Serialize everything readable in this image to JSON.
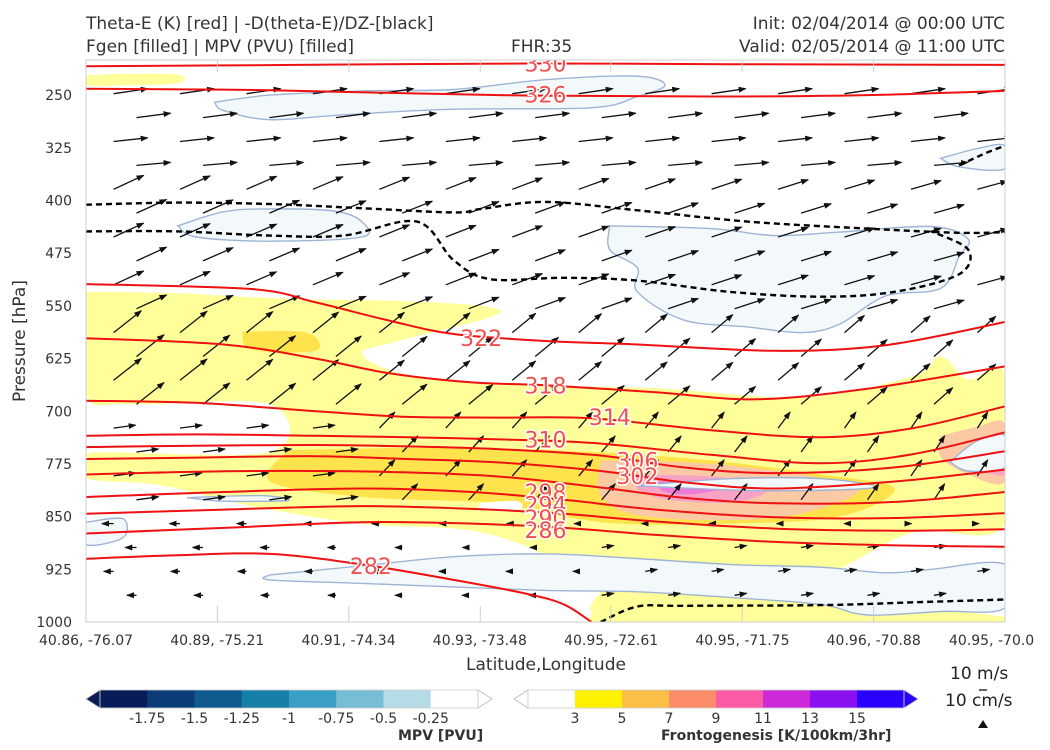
{
  "header": {
    "line1_left": "Theta-E (K) [red] | -D(theta-E)/DZ-[black]",
    "line2_left": "Fgen [filled] | MPV (PVU) [filled]",
    "fhr": "FHR:35",
    "init": "Init: 02/04/2014 @ 00:00 UTC",
    "valid": "Valid: 02/05/2014 @ 11:00 UTC"
  },
  "chart_data": {
    "type": "cross-section",
    "ylabel": "Pressure [hPa]",
    "xlabel": "Latitude,Longitude",
    "y_ticks": [
      250,
      325,
      400,
      475,
      550,
      625,
      700,
      775,
      850,
      925,
      1000
    ],
    "ylim": [
      1000,
      200
    ],
    "x_ticks": [
      "40.86, -76.07",
      "40.89, -75.21",
      "40.91, -74.34",
      "40.93, -73.48",
      "40.95, -72.61",
      "40.95, -71.75",
      "40.96, -70.88",
      "40.95, -70.0"
    ],
    "theta_e_contours": [
      {
        "label": "330",
        "points": [
          [
            0,
            209
          ],
          [
            0.23,
            207
          ],
          [
            0.48,
            205
          ],
          [
            0.7,
            206
          ],
          [
            1,
            207
          ]
        ]
      },
      {
        "label": "326",
        "points": [
          [
            0,
            241
          ],
          [
            0.2,
            243
          ],
          [
            0.45,
            250
          ],
          [
            0.68,
            252
          ],
          [
            0.85,
            250
          ],
          [
            1,
            244
          ]
        ]
      },
      {
        "label": "322",
        "points": [
          [
            0,
            519
          ],
          [
            0.18,
            526
          ],
          [
            0.25,
            545
          ],
          [
            0.33,
            571
          ],
          [
            0.4,
            590
          ],
          [
            0.5,
            600
          ],
          [
            0.6,
            605
          ],
          [
            0.75,
            614
          ],
          [
            0.87,
            606
          ],
          [
            1,
            573
          ]
        ]
      },
      {
        "label": "318",
        "points": [
          [
            0,
            596
          ],
          [
            0.15,
            605
          ],
          [
            0.25,
            625
          ],
          [
            0.33,
            646
          ],
          [
            0.42,
            659
          ],
          [
            0.5,
            663
          ],
          [
            0.62,
            673
          ],
          [
            0.73,
            683
          ],
          [
            0.85,
            668
          ],
          [
            1,
            636
          ]
        ]
      },
      {
        "label": "314",
        "points": [
          [
            0,
            685
          ],
          [
            0.12,
            688
          ],
          [
            0.25,
            700
          ],
          [
            0.35,
            708
          ],
          [
            0.45,
            709
          ],
          [
            0.55,
            710
          ],
          [
            0.68,
            727
          ],
          [
            0.8,
            737
          ],
          [
            0.9,
            724
          ],
          [
            1,
            693
          ]
        ]
      },
      {
        "label": "310",
        "points": [
          [
            0,
            735
          ],
          [
            0.12,
            733
          ],
          [
            0.25,
            735
          ],
          [
            0.35,
            737
          ],
          [
            0.45,
            740
          ],
          [
            0.55,
            745
          ],
          [
            0.68,
            762
          ],
          [
            0.8,
            774
          ],
          [
            0.9,
            761
          ],
          [
            1,
            730
          ]
        ]
      },
      {
        "label": "306",
        "points": [
          [
            0,
            751
          ],
          [
            0.12,
            749
          ],
          [
            0.25,
            748
          ],
          [
            0.35,
            750
          ],
          [
            0.45,
            754
          ],
          [
            0.56,
            763
          ],
          [
            0.65,
            780
          ],
          [
            0.75,
            788
          ],
          [
            0.88,
            780
          ],
          [
            1,
            757
          ]
        ]
      },
      {
        "label": "302",
        "points": [
          [
            0,
            768
          ],
          [
            0.12,
            766
          ],
          [
            0.25,
            764
          ],
          [
            0.35,
            768
          ],
          [
            0.45,
            773
          ],
          [
            0.56,
            785
          ],
          [
            0.65,
            801
          ],
          [
            0.75,
            810
          ],
          [
            0.88,
            800
          ],
          [
            1,
            783
          ]
        ]
      },
      {
        "label": "298",
        "points": [
          [
            0,
            790
          ],
          [
            0.12,
            786
          ],
          [
            0.25,
            785
          ],
          [
            0.35,
            787
          ],
          [
            0.45,
            793
          ],
          [
            0.55,
            807
          ],
          [
            0.65,
            823
          ],
          [
            0.75,
            831
          ],
          [
            0.88,
            829
          ],
          [
            1,
            815
          ]
        ]
      },
      {
        "label": "294",
        "points": [
          [
            0,
            822
          ],
          [
            0.15,
            815
          ],
          [
            0.3,
            810
          ],
          [
            0.42,
            815
          ],
          [
            0.52,
            826
          ],
          [
            0.62,
            840
          ],
          [
            0.75,
            851
          ],
          [
            0.88,
            852
          ],
          [
            1,
            845
          ]
        ]
      },
      {
        "label": "290",
        "points": [
          [
            0,
            846
          ],
          [
            0.15,
            840
          ],
          [
            0.3,
            835
          ],
          [
            0.42,
            839
          ],
          [
            0.52,
            846
          ],
          [
            0.62,
            857
          ],
          [
            0.75,
            867
          ],
          [
            0.88,
            870
          ],
          [
            1,
            868
          ]
        ]
      },
      {
        "label": "286",
        "points": [
          [
            0,
            874
          ],
          [
            0.15,
            866
          ],
          [
            0.3,
            858
          ],
          [
            0.42,
            860
          ],
          [
            0.52,
            866
          ],
          [
            0.62,
            876
          ],
          [
            0.75,
            886
          ],
          [
            0.88,
            891
          ],
          [
            1,
            893
          ]
        ]
      },
      {
        "label": "282",
        "points": [
          [
            0,
            910
          ],
          [
            0.1,
            905
          ],
          [
            0.2,
            903
          ],
          [
            0.3,
            918
          ],
          [
            0.4,
            940
          ],
          [
            0.48,
            960
          ],
          [
            0.52,
            975
          ],
          [
            0.55,
            1000
          ]
        ]
      }
    ],
    "theta_e_label_positions": [
      {
        "label": "330",
        "x": 0.5,
        "y": 205
      },
      {
        "label": "326",
        "x": 0.5,
        "y": 249
      },
      {
        "label": "322",
        "x": 0.43,
        "y": 596
      },
      {
        "label": "318",
        "x": 0.5,
        "y": 663
      },
      {
        "label": "314",
        "x": 0.57,
        "y": 708
      },
      {
        "label": "310",
        "x": 0.5,
        "y": 740
      },
      {
        "label": "306",
        "x": 0.6,
        "y": 770
      },
      {
        "label": "302",
        "x": 0.6,
        "y": 792
      },
      {
        "label": "298",
        "x": 0.5,
        "y": 815
      },
      {
        "label": "294",
        "x": 0.5,
        "y": 833
      },
      {
        "label": "290",
        "x": 0.5,
        "y": 852
      },
      {
        "label": "286",
        "x": 0.5,
        "y": 869
      },
      {
        "label": "282",
        "x": 0.31,
        "y": 920
      }
    ],
    "stability_contours_dashed": [
      {
        "points": [
          [
            0,
            406
          ],
          [
            0.1,
            403
          ],
          [
            0.2,
            405
          ],
          [
            0.3,
            411
          ],
          [
            0.4,
            417
          ],
          [
            0.43,
            412
          ],
          [
            0.5,
            402
          ],
          [
            0.6,
            414
          ],
          [
            0.72,
            430
          ],
          [
            0.85,
            440
          ],
          [
            0.95,
            446
          ],
          [
            1,
            445
          ]
        ]
      },
      {
        "points": [
          [
            0,
            444
          ],
          [
            0.1,
            444
          ],
          [
            0.2,
            450
          ],
          [
            0.28,
            450
          ],
          [
            0.36,
            430
          ],
          [
            0.4,
            485
          ],
          [
            0.44,
            512
          ],
          [
            0.52,
            510
          ],
          [
            0.6,
            514
          ],
          [
            0.7,
            530
          ],
          [
            0.8,
            537
          ],
          [
            0.88,
            530
          ],
          [
            0.95,
            505
          ],
          [
            0.96,
            470
          ],
          [
            0.92,
            444
          ]
        ]
      },
      {
        "points": [
          [
            0.56,
            1000
          ],
          [
            0.6,
            978
          ],
          [
            0.65,
            977
          ],
          [
            0.8,
            976
          ],
          [
            0.9,
            972
          ],
          [
            1,
            968
          ]
        ]
      },
      {
        "points": [
          [
            0.95,
            350
          ],
          [
            0.98,
            332
          ],
          [
            1,
            322
          ]
        ]
      }
    ],
    "fgen_colorbar": {
      "title": "Frontogenesis [K/100km/3hr]",
      "ticks": [
        3,
        5,
        7,
        9,
        11,
        13,
        15
      ],
      "colors": [
        "#ffffff",
        "#fff200",
        "#fcbe44",
        "#fc8c6a",
        "#fc5aa4",
        "#cc2ad9",
        "#8a12f0",
        "#2a00ff"
      ]
    },
    "mpv_colorbar": {
      "title": "MPV [PVU]",
      "ticks": [
        -1.75,
        -1.5,
        -1.25,
        -1.0,
        -0.75,
        -0.5,
        -0.25
      ],
      "colors": [
        "#081d58",
        "#0c3c78",
        "#0f5a8f",
        "#157fa8",
        "#3a9fc4",
        "#78bdd6",
        "#b5dbe6",
        "#ffffff"
      ]
    },
    "fill_colors": {
      "fgen_3": "#ffff99",
      "fgen_5": "#ffe34d",
      "fgen_7": "#fbc9a4",
      "fgen_9": "#f7a3c6",
      "fgen_11": "#ef7ad9",
      "mpv_neg": "#f3f9fa",
      "mpv_edge": "#9eb4d6"
    },
    "line_colors": {
      "theta_e": "#ee1111",
      "theta_e_label": "#f05050",
      "stability": "#000000",
      "wind": "#111111"
    },
    "wind_reference": {
      "u_label": "10 m/s",
      "w_label": "10 cm/s"
    }
  }
}
